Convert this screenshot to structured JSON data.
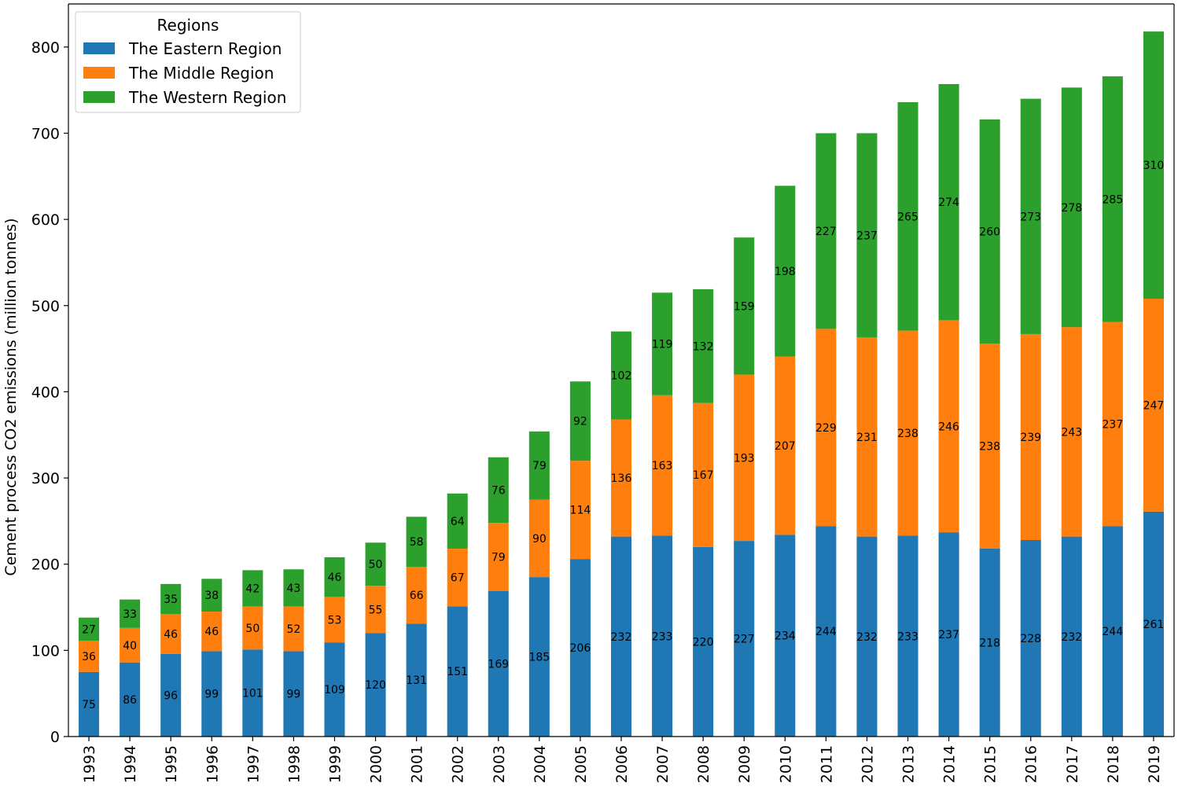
{
  "chart_data": {
    "type": "bar",
    "stacked": true,
    "title": "",
    "xlabel": "",
    "ylabel": "Cement process CO2 emissions (million tonnes)",
    "ylim": [
      0,
      850
    ],
    "yticks": [
      0,
      100,
      200,
      300,
      400,
      500,
      600,
      700,
      800
    ],
    "categories": [
      "1993",
      "1994",
      "1995",
      "1996",
      "1997",
      "1998",
      "1999",
      "2000",
      "2001",
      "2002",
      "2003",
      "2004",
      "2005",
      "2006",
      "2007",
      "2008",
      "2009",
      "2010",
      "2011",
      "2012",
      "2013",
      "2014",
      "2015",
      "2016",
      "2017",
      "2018",
      "2019"
    ],
    "legend": {
      "title": "Regions",
      "position": "top-left"
    },
    "series": [
      {
        "name": "The Eastern Region",
        "color": "#1f77b4",
        "values": [
          75,
          86,
          96,
          99,
          101,
          99,
          109,
          120,
          131,
          151,
          169,
          185,
          206,
          232,
          233,
          220,
          227,
          234,
          244,
          232,
          233,
          237,
          218,
          228,
          232,
          244,
          261
        ]
      },
      {
        "name": "The Middle Region",
        "color": "#ff7f0e",
        "values": [
          36,
          40,
          46,
          46,
          50,
          52,
          53,
          55,
          66,
          67,
          79,
          90,
          114,
          136,
          163,
          167,
          193,
          207,
          229,
          231,
          238,
          246,
          238,
          239,
          243,
          237,
          247
        ]
      },
      {
        "name": "The Western Region",
        "color": "#2ca02c",
        "values": [
          27,
          33,
          35,
          38,
          42,
          43,
          46,
          50,
          58,
          64,
          76,
          79,
          92,
          102,
          119,
          132,
          159,
          198,
          227,
          237,
          265,
          274,
          260,
          273,
          278,
          285,
          310
        ]
      }
    ]
  }
}
